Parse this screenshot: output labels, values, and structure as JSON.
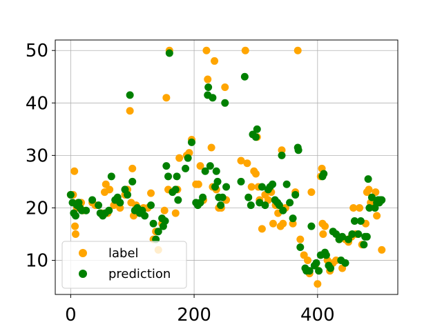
{
  "chart_data": {
    "type": "scatter",
    "xlim": [
      -25,
      530
    ],
    "ylim": [
      3.5,
      52
    ],
    "grid": true,
    "xticks": [
      0,
      200,
      400
    ],
    "yticks": [
      10,
      20,
      30,
      40,
      50
    ],
    "legend_position": "lower-left",
    "series": [
      {
        "name": "label",
        "color": "#FFA500",
        "points": [
          [
            0,
            22.5
          ],
          [
            4,
            22.5
          ],
          [
            6,
            27
          ],
          [
            7,
            16.5
          ],
          [
            8,
            15
          ],
          [
            10,
            20
          ],
          [
            12,
            21
          ],
          [
            15,
            20.5
          ],
          [
            17,
            21
          ],
          [
            20,
            19.5
          ],
          [
            35,
            21
          ],
          [
            40,
            20.5
          ],
          [
            50,
            19
          ],
          [
            55,
            23
          ],
          [
            57,
            24.5
          ],
          [
            60,
            19
          ],
          [
            63,
            23.5
          ],
          [
            70,
            20.5
          ],
          [
            76,
            21.5
          ],
          [
            80,
            20
          ],
          [
            88,
            22.5
          ],
          [
            92,
            23.5
          ],
          [
            96,
            38.5
          ],
          [
            98,
            21
          ],
          [
            100,
            27.5
          ],
          [
            102,
            18.5
          ],
          [
            106,
            20.5
          ],
          [
            110,
            19.5
          ],
          [
            115,
            19
          ],
          [
            118,
            20
          ],
          [
            125,
            20
          ],
          [
            130,
            22.8
          ],
          [
            134,
            14
          ],
          [
            138,
            15.5
          ],
          [
            142,
            12
          ],
          [
            148,
            17
          ],
          [
            152,
            19.5
          ],
          [
            155,
            41
          ],
          [
            158,
            23.5
          ],
          [
            160,
            50
          ],
          [
            170,
            19
          ],
          [
            173,
            23.5
          ],
          [
            176,
            29.5
          ],
          [
            188,
            30
          ],
          [
            192,
            30.5
          ],
          [
            196,
            33
          ],
          [
            203,
            24.5
          ],
          [
            207,
            24.5
          ],
          [
            210,
            28
          ],
          [
            215,
            21.5
          ],
          [
            220,
            50
          ],
          [
            222,
            44.5
          ],
          [
            228,
            31.5
          ],
          [
            230,
            24
          ],
          [
            233,
            48
          ],
          [
            236,
            23.5
          ],
          [
            240,
            20
          ],
          [
            244,
            20
          ],
          [
            250,
            43
          ],
          [
            252,
            21.5
          ],
          [
            276,
            29
          ],
          [
            283,
            50
          ],
          [
            286,
            28.5
          ],
          [
            293,
            24
          ],
          [
            297,
            27
          ],
          [
            300,
            26.5
          ],
          [
            302,
            33.5
          ],
          [
            304,
            24
          ],
          [
            306,
            21.5
          ],
          [
            310,
            16
          ],
          [
            315,
            22.5
          ],
          [
            320,
            21.5
          ],
          [
            325,
            23
          ],
          [
            328,
            17
          ],
          [
            332,
            20.5
          ],
          [
            336,
            19
          ],
          [
            340,
            16.5
          ],
          [
            342,
            31
          ],
          [
            344,
            17
          ],
          [
            348,
            20
          ],
          [
            360,
            17
          ],
          [
            364,
            23
          ],
          [
            368,
            50
          ],
          [
            372,
            14
          ],
          [
            378,
            11
          ],
          [
            384,
            10
          ],
          [
            387,
            7.5
          ],
          [
            390,
            23
          ],
          [
            396,
            9
          ],
          [
            400,
            5.5
          ],
          [
            405,
            26
          ],
          [
            407,
            27.5
          ],
          [
            408,
            17
          ],
          [
            409,
            15
          ],
          [
            412,
            16.5
          ],
          [
            414,
            11
          ],
          [
            416,
            10
          ],
          [
            420,
            8
          ],
          [
            425,
            9.5
          ],
          [
            430,
            10
          ],
          [
            435,
            14
          ],
          [
            440,
            8.5
          ],
          [
            445,
            14
          ],
          [
            450,
            13.5
          ],
          [
            455,
            14.5
          ],
          [
            458,
            20
          ],
          [
            462,
            15
          ],
          [
            468,
            20
          ],
          [
            472,
            13
          ],
          [
            478,
            17
          ],
          [
            480,
            23
          ],
          [
            483,
            23.5
          ],
          [
            486,
            21
          ],
          [
            490,
            20.5
          ],
          [
            494,
            23
          ],
          [
            496,
            18.5
          ],
          [
            500,
            21.5
          ],
          [
            504,
            12
          ]
        ]
      },
      {
        "name": "prediction",
        "color": "#008000",
        "points": [
          [
            0,
            22.5
          ],
          [
            3,
            21
          ],
          [
            5,
            19
          ],
          [
            8,
            18.5
          ],
          [
            10,
            20.5
          ],
          [
            13,
            21
          ],
          [
            15,
            20
          ],
          [
            18,
            19.5
          ],
          [
            25,
            19.5
          ],
          [
            35,
            21.5
          ],
          [
            45,
            20.5
          ],
          [
            48,
            19
          ],
          [
            52,
            18.5
          ],
          [
            56,
            19
          ],
          [
            62,
            19.5
          ],
          [
            66,
            26
          ],
          [
            72,
            21.5
          ],
          [
            76,
            22
          ],
          [
            80,
            21
          ],
          [
            88,
            23.5
          ],
          [
            92,
            22.5
          ],
          [
            96,
            41.5
          ],
          [
            100,
            25
          ],
          [
            104,
            19.5
          ],
          [
            108,
            20
          ],
          [
            112,
            19
          ],
          [
            116,
            19.5
          ],
          [
            120,
            18.5
          ],
          [
            130,
            20.5
          ],
          [
            134,
            17
          ],
          [
            138,
            14
          ],
          [
            142,
            15.5
          ],
          [
            148,
            18
          ],
          [
            150,
            16.5
          ],
          [
            153,
            17.5
          ],
          [
            155,
            28
          ],
          [
            158,
            26
          ],
          [
            160,
            49.5
          ],
          [
            165,
            23
          ],
          [
            170,
            23.5
          ],
          [
            172,
            26
          ],
          [
            174,
            21.5
          ],
          [
            186,
            27.5
          ],
          [
            190,
            29.5
          ],
          [
            196,
            32.5
          ],
          [
            203,
            21
          ],
          [
            206,
            20.5
          ],
          [
            210,
            21
          ],
          [
            214,
            22
          ],
          [
            218,
            27
          ],
          [
            222,
            41.5
          ],
          [
            223,
            43
          ],
          [
            226,
            28
          ],
          [
            230,
            41
          ],
          [
            234,
            24
          ],
          [
            236,
            27
          ],
          [
            238,
            25
          ],
          [
            240,
            22
          ],
          [
            243,
            20.5
          ],
          [
            246,
            22
          ],
          [
            250,
            40
          ],
          [
            252,
            24
          ],
          [
            276,
            25
          ],
          [
            282,
            45
          ],
          [
            288,
            22
          ],
          [
            292,
            20.5
          ],
          [
            295,
            34
          ],
          [
            300,
            33.5
          ],
          [
            302,
            35
          ],
          [
            306,
            21
          ],
          [
            310,
            24
          ],
          [
            315,
            20.5
          ],
          [
            320,
            23.5
          ],
          [
            323,
            24
          ],
          [
            327,
            24.5
          ],
          [
            331,
            21.5
          ],
          [
            335,
            21
          ],
          [
            338,
            20.5
          ],
          [
            342,
            30
          ],
          [
            344,
            19.5
          ],
          [
            350,
            24.5
          ],
          [
            355,
            21
          ],
          [
            360,
            18
          ],
          [
            364,
            22.5
          ],
          [
            368,
            31.5
          ],
          [
            369,
            31
          ],
          [
            372,
            12.5
          ],
          [
            380,
            8.5
          ],
          [
            382,
            8
          ],
          [
            387,
            8
          ],
          [
            390,
            16.5
          ],
          [
            395,
            9
          ],
          [
            398,
            9.5
          ],
          [
            402,
            8
          ],
          [
            405,
            11
          ],
          [
            408,
            26
          ],
          [
            410,
            26.5
          ],
          [
            412,
            11.5
          ],
          [
            414,
            11
          ],
          [
            418,
            9
          ],
          [
            421,
            8.5
          ],
          [
            425,
            15.5
          ],
          [
            430,
            15
          ],
          [
            435,
            14
          ],
          [
            438,
            10
          ],
          [
            440,
            14.5
          ],
          [
            445,
            9.5
          ],
          [
            450,
            14
          ],
          [
            456,
            15
          ],
          [
            460,
            17.5
          ],
          [
            466,
            15
          ],
          [
            470,
            17.5
          ],
          [
            475,
            13
          ],
          [
            477,
            14.5
          ],
          [
            480,
            14.5
          ],
          [
            482,
            25.5
          ],
          [
            484,
            20
          ],
          [
            488,
            22
          ],
          [
            493,
            20
          ],
          [
            496,
            21
          ],
          [
            498,
            21.5
          ],
          [
            500,
            21
          ],
          [
            502,
            21.5
          ],
          [
            504,
            21.5
          ]
        ]
      }
    ]
  }
}
